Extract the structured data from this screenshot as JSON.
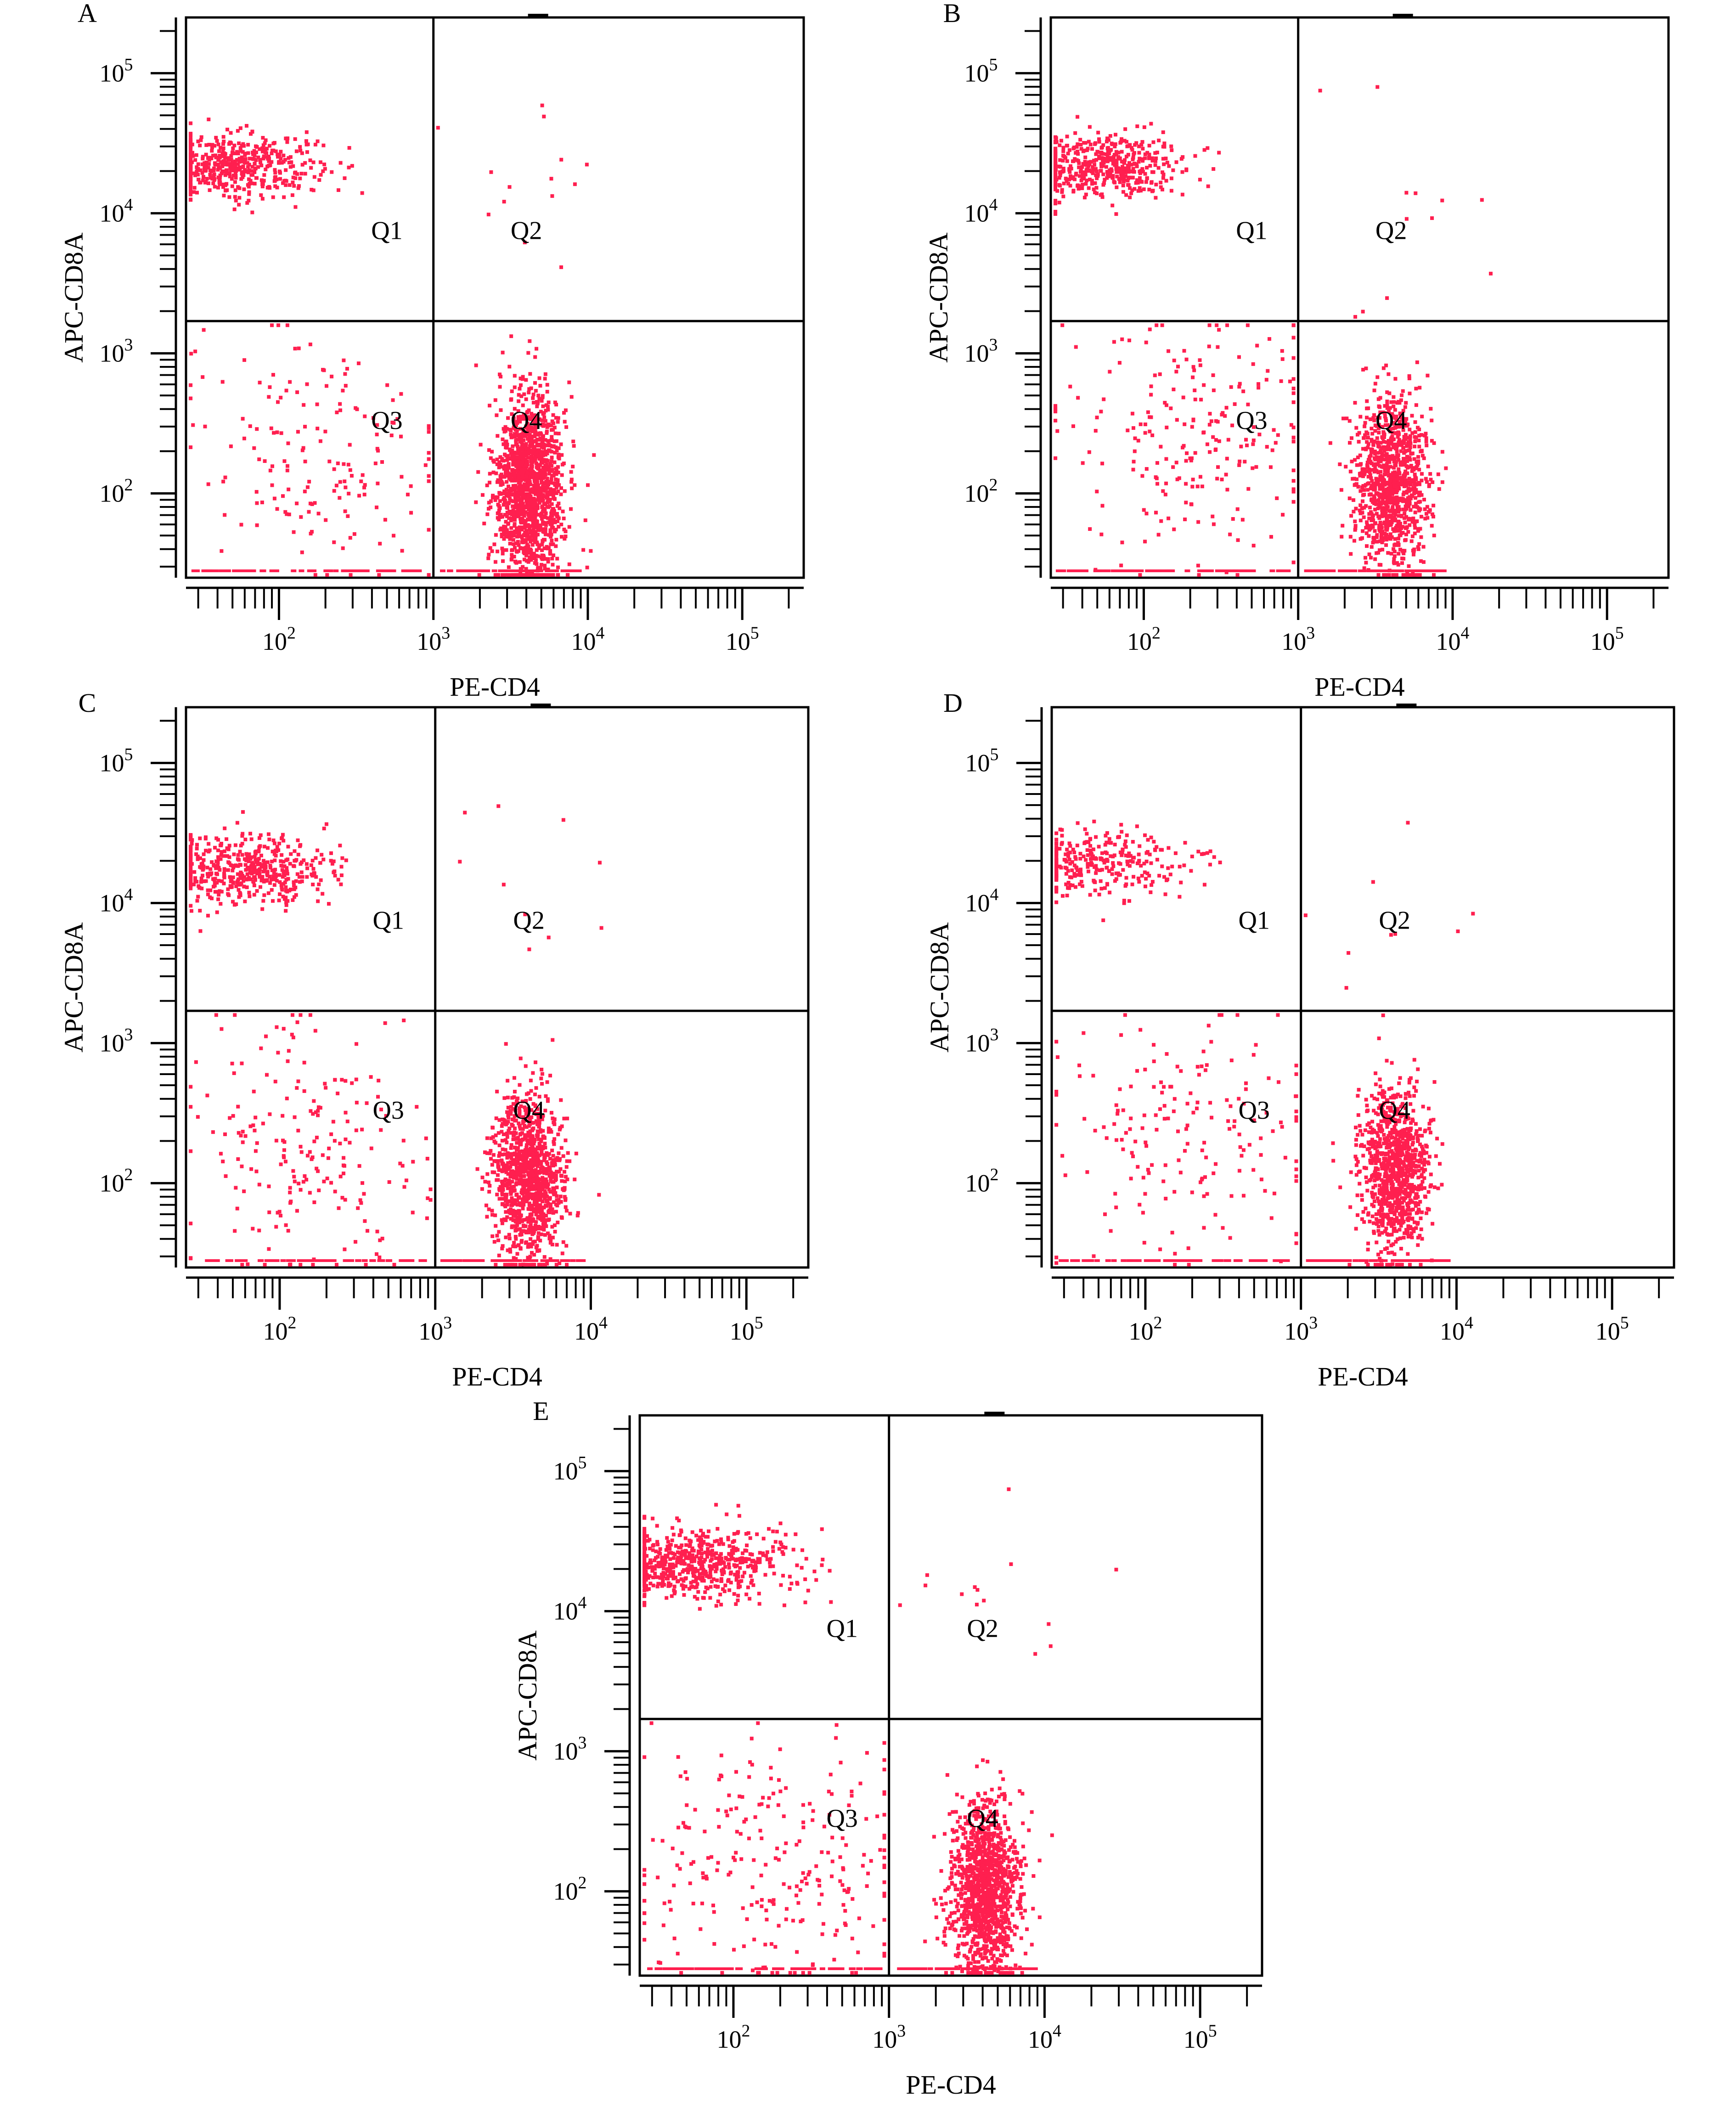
{
  "chart_data": [
    {
      "type": "scatter",
      "panel_label": "A",
      "xlabel": "PE-CD4",
      "ylabel": "APC-CD8A",
      "x_scale": "log",
      "y_scale": "log",
      "xlim": [
        25,
        250000
      ],
      "ylim": [
        25,
        250000
      ],
      "x_ticks": [
        "10^2",
        "10^3",
        "10^4",
        "10^5"
      ],
      "y_ticks": [
        "10^2",
        "10^3",
        "10^4",
        "10^5"
      ],
      "gate": {
        "x": 1000,
        "y": 1700
      },
      "quadrants": [
        "Q1",
        "Q2",
        "Q3",
        "Q4"
      ],
      "point_color": "#ff1f4f",
      "populations": [
        {
          "quadrant": "Q1",
          "count": 520,
          "x_center": 50,
          "x_spread": 0.28,
          "y_center": 22000,
          "y_spread": 0.11
        },
        {
          "quadrant": "Q2",
          "count": 14,
          "x_center": 4000,
          "x_spread": 0.35,
          "y_center": 12000,
          "y_spread": 0.4
        },
        {
          "quadrant": "Q3",
          "count": 170,
          "x_center": 180,
          "x_spread": 0.45,
          "y_center": 220,
          "y_spread": 0.45
        },
        {
          "quadrant": "Q4",
          "count": 1500,
          "x_center": 4200,
          "x_spread": 0.11,
          "y_center": 110,
          "y_spread": 0.33
        }
      ]
    },
    {
      "type": "scatter",
      "panel_label": "B",
      "xlabel": "PE-CD4",
      "ylabel": "APC-CD8A",
      "x_scale": "log",
      "y_scale": "log",
      "xlim": [
        25,
        250000
      ],
      "ylim": [
        25,
        250000
      ],
      "x_ticks": [
        "10^2",
        "10^3",
        "10^4",
        "10^5"
      ],
      "y_ticks": [
        "10^2",
        "10^3",
        "10^4",
        "10^5"
      ],
      "gate": {
        "x": 1000,
        "y": 1700
      },
      "quadrants": [
        "Q1",
        "Q2",
        "Q3",
        "Q4"
      ],
      "point_color": "#ff1f4f",
      "populations": [
        {
          "quadrant": "Q1",
          "count": 520,
          "x_center": 50,
          "x_spread": 0.28,
          "y_center": 22000,
          "y_spread": 0.11
        },
        {
          "quadrant": "Q2",
          "count": 12,
          "x_center": 4000,
          "x_spread": 0.35,
          "y_center": 8000,
          "y_spread": 0.4
        },
        {
          "quadrant": "Q3",
          "count": 230,
          "x_center": 200,
          "x_spread": 0.45,
          "y_center": 250,
          "y_spread": 0.45
        },
        {
          "quadrant": "Q4",
          "count": 1050,
          "x_center": 4000,
          "x_spread": 0.12,
          "y_center": 120,
          "y_spread": 0.3
        }
      ]
    },
    {
      "type": "scatter",
      "panel_label": "C",
      "xlabel": "PE-CD4",
      "ylabel": "APC-CD8A",
      "x_scale": "log",
      "y_scale": "log",
      "xlim": [
        25,
        250000
      ],
      "ylim": [
        25,
        250000
      ],
      "x_ticks": [
        "10^2",
        "10^3",
        "10^4",
        "10^5"
      ],
      "y_ticks": [
        "10^2",
        "10^3",
        "10^4",
        "10^5"
      ],
      "gate": {
        "x": 1000,
        "y": 1700
      },
      "quadrants": [
        "Q1",
        "Q2",
        "Q3",
        "Q4"
      ],
      "point_color": "#ff1f4f",
      "populations": [
        {
          "quadrant": "Q1",
          "count": 500,
          "x_center": 60,
          "x_spread": 0.28,
          "y_center": 17000,
          "y_spread": 0.13
        },
        {
          "quadrant": "Q2",
          "count": 10,
          "x_center": 4000,
          "x_spread": 0.35,
          "y_center": 8000,
          "y_spread": 0.45
        },
        {
          "quadrant": "Q3",
          "count": 210,
          "x_center": 130,
          "x_spread": 0.4,
          "y_center": 180,
          "y_spread": 0.45
        },
        {
          "quadrant": "Q4",
          "count": 1150,
          "x_center": 4000,
          "x_spread": 0.11,
          "y_center": 110,
          "y_spread": 0.3
        }
      ]
    },
    {
      "type": "scatter",
      "panel_label": "D",
      "xlabel": "PE-CD4",
      "ylabel": "APC-CD8A",
      "x_scale": "log",
      "y_scale": "log",
      "xlim": [
        25,
        250000
      ],
      "ylim": [
        25,
        250000
      ],
      "x_ticks": [
        "10^2",
        "10^3",
        "10^4",
        "10^5"
      ],
      "y_ticks": [
        "10^2",
        "10^3",
        "10^4",
        "10^5"
      ],
      "gate": {
        "x": 1000,
        "y": 1700
      },
      "quadrants": [
        "Q1",
        "Q2",
        "Q3",
        "Q4"
      ],
      "point_color": "#ff1f4f",
      "populations": [
        {
          "quadrant": "Q1",
          "count": 300,
          "x_center": 50,
          "x_spread": 0.28,
          "y_center": 19000,
          "y_spread": 0.12
        },
        {
          "quadrant": "Q2",
          "count": 9,
          "x_center": 4000,
          "x_spread": 0.4,
          "y_center": 7000,
          "y_spread": 0.45
        },
        {
          "quadrant": "Q3",
          "count": 180,
          "x_center": 180,
          "x_spread": 0.45,
          "y_center": 200,
          "y_spread": 0.45
        },
        {
          "quadrant": "Q4",
          "count": 1000,
          "x_center": 4000,
          "x_spread": 0.11,
          "y_center": 120,
          "y_spread": 0.3
        }
      ]
    },
    {
      "type": "scatter",
      "panel_label": "E",
      "xlabel": "PE-CD4",
      "ylabel": "APC-CD8A",
      "x_scale": "log",
      "y_scale": "log",
      "xlim": [
        25,
        250000
      ],
      "ylim": [
        25,
        250000
      ],
      "x_ticks": [
        "10^2",
        "10^3",
        "10^4",
        "10^5"
      ],
      "y_ticks": [
        "10^2",
        "10^3",
        "10^4",
        "10^5"
      ],
      "gate": {
        "x": 1000,
        "y": 1700
      },
      "quadrants": [
        "Q1",
        "Q2",
        "Q3",
        "Q4"
      ],
      "point_color": "#ff1f4f",
      "populations": [
        {
          "quadrant": "Q1",
          "count": 620,
          "x_center": 55,
          "x_spread": 0.3,
          "y_center": 22000,
          "y_spread": 0.13
        },
        {
          "quadrant": "Q2",
          "count": 14,
          "x_center": 3500,
          "x_spread": 0.4,
          "y_center": 15000,
          "y_spread": 0.3
        },
        {
          "quadrant": "Q3",
          "count": 250,
          "x_center": 170,
          "x_spread": 0.45,
          "y_center": 160,
          "y_spread": 0.5
        },
        {
          "quadrant": "Q4",
          "count": 1200,
          "x_center": 4200,
          "x_spread": 0.11,
          "y_center": 100,
          "y_spread": 0.3
        }
      ]
    }
  ]
}
